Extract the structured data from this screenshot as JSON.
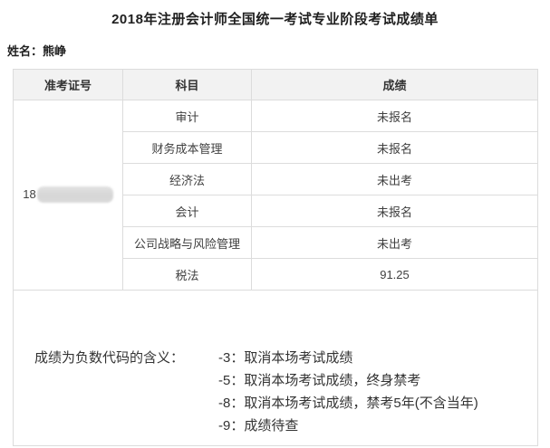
{
  "title": "2018年注册会计师全国统一考试专业阶段考试成绩单",
  "name": {
    "label": "姓名：",
    "value": "熊峥"
  },
  "table": {
    "headers": [
      "准考证号",
      "科目",
      "成绩"
    ],
    "ticket_prefix": "18",
    "ticket_redacted": true,
    "rows": [
      {
        "subject": "审计",
        "score": "未报名"
      },
      {
        "subject": "财务成本管理",
        "score": "未报名"
      },
      {
        "subject": "经济法",
        "score": "未出考"
      },
      {
        "subject": "会计",
        "score": "未报名"
      },
      {
        "subject": "公司战略与风险管理",
        "score": "未出考"
      },
      {
        "subject": "税法",
        "score": "91.25"
      }
    ]
  },
  "legend": {
    "label": "成绩为负数代码的含义：",
    "items": [
      "-3：取消本场考试成绩",
      "-5：取消本场考试成绩，终身禁考",
      "-8：取消本场考试成绩，禁考5年(不含当年)",
      "-9：成绩待查"
    ]
  },
  "colors": {
    "header_bg": "#f2f2f2",
    "border": "#dcdcdc",
    "text": "#333333",
    "redaction_patch": "#d8d8d8",
    "background": "#ffffff"
  }
}
